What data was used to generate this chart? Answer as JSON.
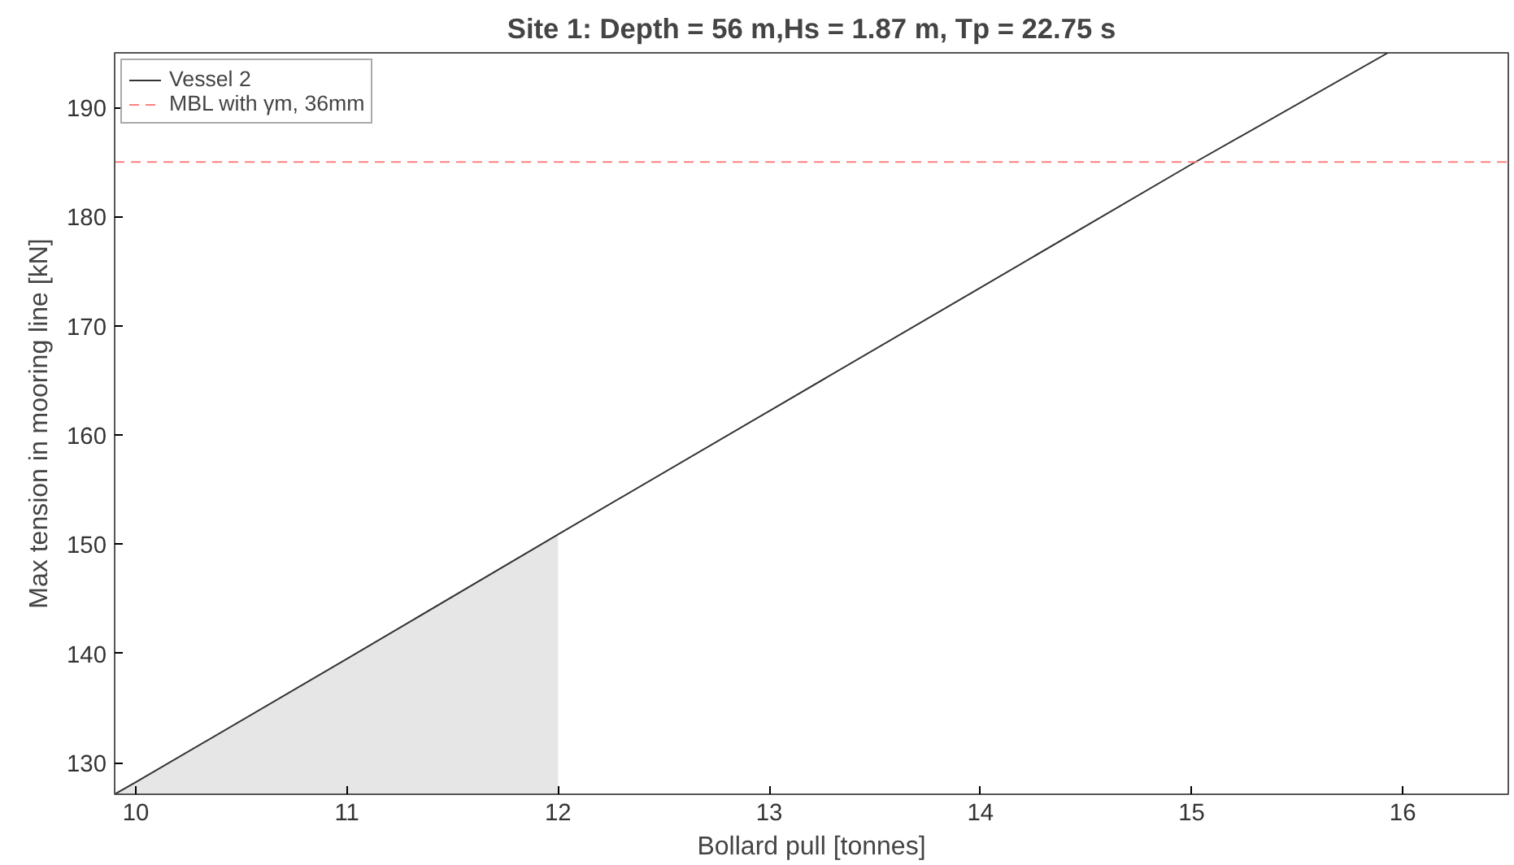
{
  "chart_data": {
    "type": "line",
    "title": "Site 1: Depth = 56 m,Hs = 1.87 m, Tp = 22.75 s",
    "xlabel": "Bollard pull [tonnes]",
    "ylabel": "Max tension in mooring line [kN]",
    "xlim": [
      9.9,
      16.5
    ],
    "ylim": [
      127.1,
      195
    ],
    "xticks": [
      10,
      11,
      12,
      13,
      14,
      15,
      16
    ],
    "yticks": [
      130,
      140,
      150,
      160,
      170,
      180,
      190
    ],
    "series": [
      {
        "type": "area",
        "color": "#e6e6e6",
        "x": [
          9.9,
          10,
          11,
          12
        ],
        "values": [
          127.1,
          128.2,
          139.5,
          150.9
        ]
      },
      {
        "name": "Vessel 2",
        "color": "#333333",
        "x": [
          9.9,
          10,
          11,
          12,
          13,
          14,
          15,
          15.93
        ],
        "values": [
          127.1,
          128.2,
          139.5,
          150.9,
          162.2,
          173.5,
          184.8,
          195
        ]
      }
    ],
    "ref_lines": [
      {
        "axis": "y",
        "value": 185,
        "label": "MBL with γm, 36mm",
        "color": "#ff8080",
        "line_style": "dashed"
      }
    ],
    "legend": "top left",
    "grid": false
  }
}
